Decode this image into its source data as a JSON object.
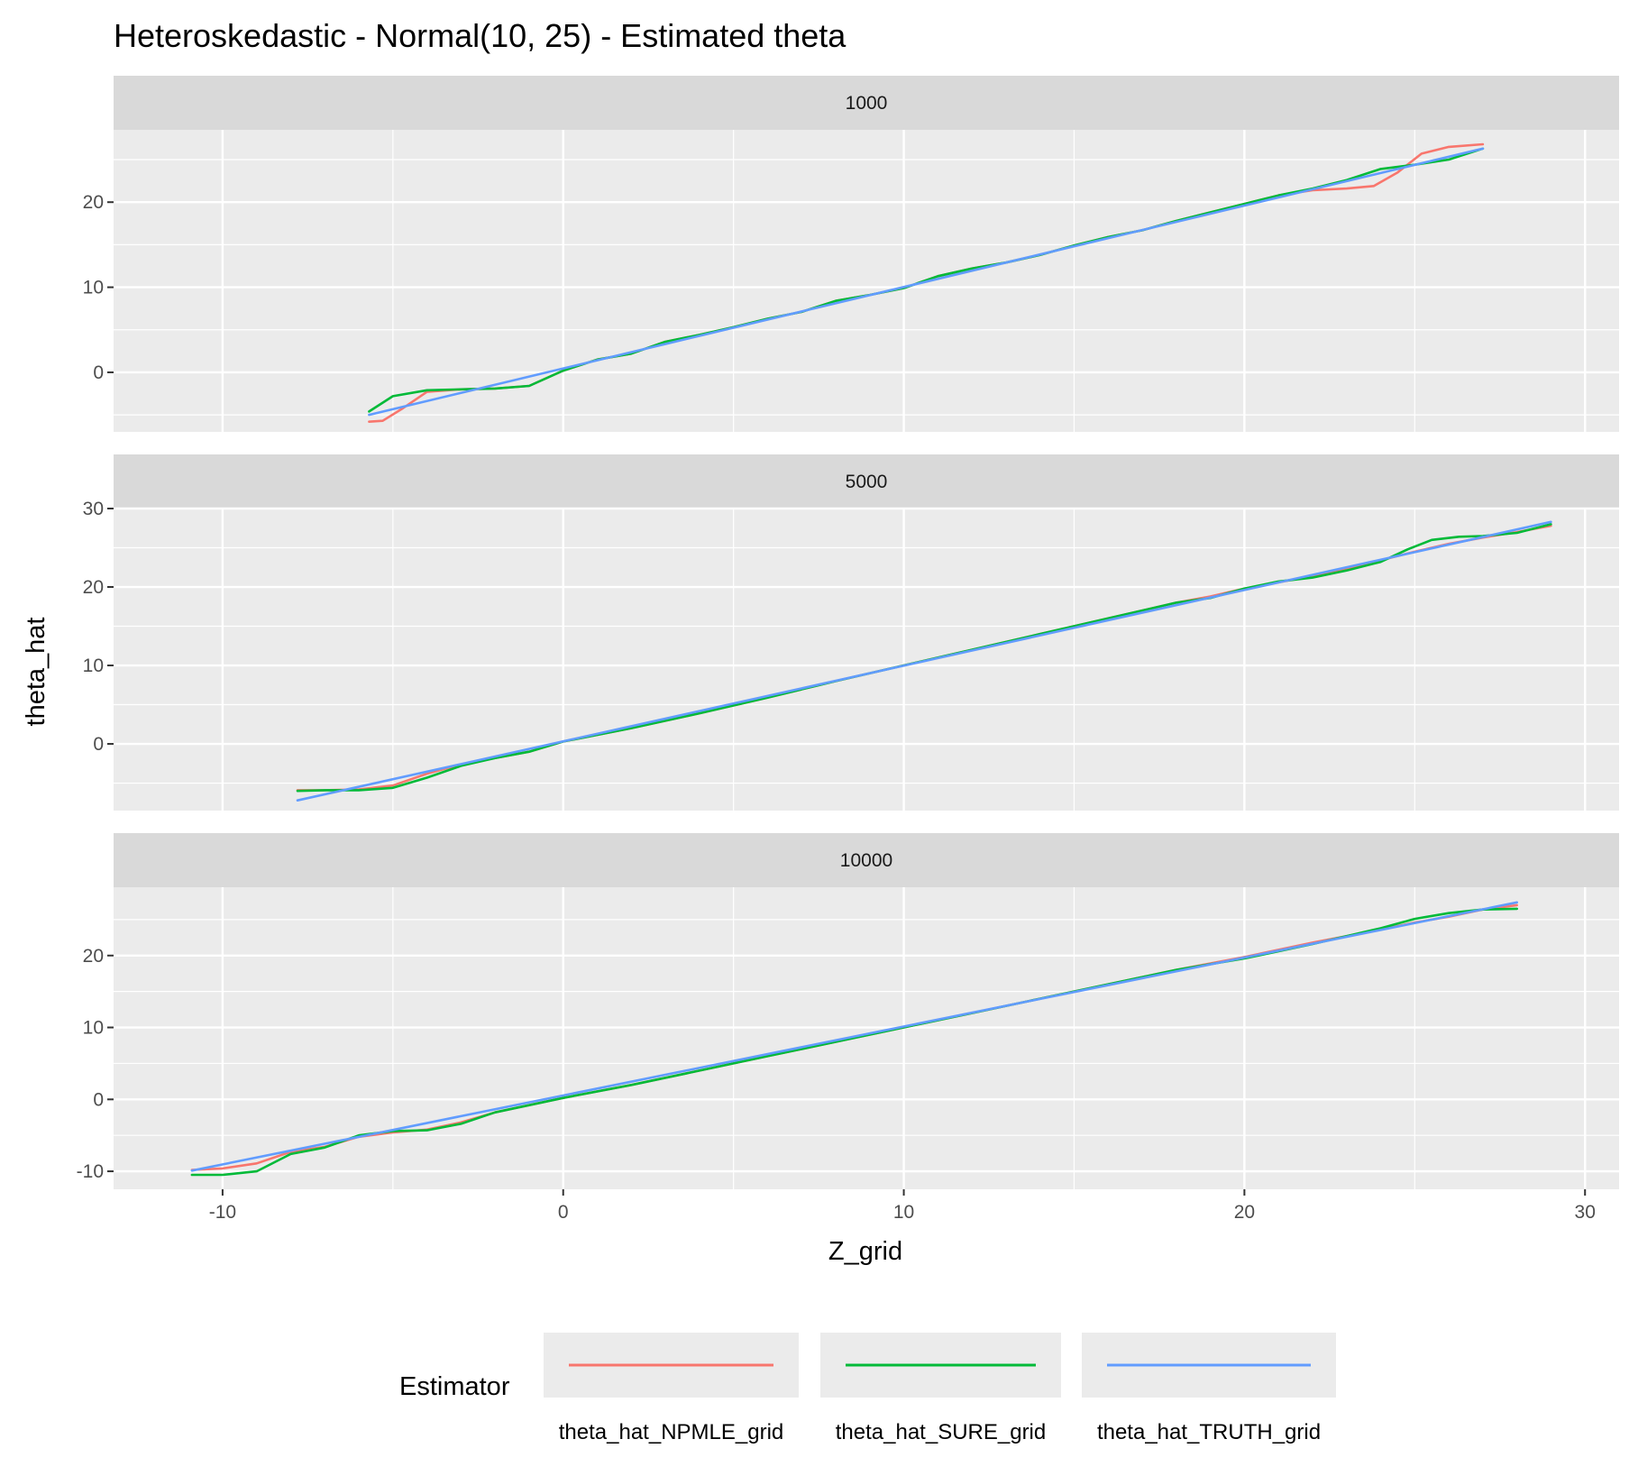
{
  "chart_data": {
    "type": "line",
    "title": "Heteroskedastic - Normal(10, 25) - Estimated theta",
    "xlabel": "Z_grid",
    "ylabel": "theta_hat",
    "xlim": [
      -13.2,
      31.0
    ],
    "x_ticks": [
      -10,
      0,
      10,
      20,
      30
    ],
    "x_tick_labels": [
      "-10",
      "0",
      "10",
      "20",
      "30"
    ],
    "grid": true,
    "legend": {
      "title": "Estimator",
      "position": "bottom",
      "entries": [
        "theta_hat_NPMLE_grid",
        "theta_hat_SURE_grid",
        "theta_hat_TRUTH_grid"
      ]
    },
    "colors": {
      "theta_hat_NPMLE_grid": "#F8766D",
      "theta_hat_SURE_grid": "#00BA38",
      "theta_hat_TRUTH_grid": "#619CFF"
    },
    "facets": [
      {
        "label": "1000",
        "ylim": [
          -7,
          28.5
        ],
        "y_ticks": [
          0,
          10,
          20
        ],
        "y_tick_labels": [
          "0",
          "10",
          "20"
        ],
        "series": [
          {
            "name": "theta_hat_NPMLE_grid",
            "x": [
              -5.7,
              -5.3,
              -4.7,
              -4.0,
              -3.0,
              -2.0,
              -1.0,
              0.0,
              1.0,
              2.0,
              3.0,
              4.0,
              5.0,
              6.0,
              7.0,
              8.0,
              9.0,
              10.0,
              11.0,
              12.0,
              13.0,
              14.0,
              15.0,
              16.0,
              17.0,
              18.0,
              19.0,
              20.0,
              21.0,
              22.0,
              23.0,
              23.8,
              24.5,
              25.2,
              26.0,
              27.0
            ],
            "y": [
              -5.8,
              -5.7,
              -4.2,
              -2.3,
              -2.0,
              -1.9,
              -1.6,
              0.2,
              1.5,
              2.2,
              3.6,
              4.4,
              5.3,
              6.3,
              7.1,
              8.4,
              9.1,
              9.9,
              11.3,
              12.2,
              12.9,
              13.8,
              14.9,
              15.9,
              16.7,
              17.8,
              18.8,
              19.8,
              20.8,
              21.4,
              21.6,
              21.9,
              23.5,
              25.7,
              26.5,
              26.8
            ]
          },
          {
            "name": "theta_hat_SURE_grid",
            "x": [
              -5.7,
              -5.0,
              -4.0,
              -3.0,
              -2.0,
              -1.0,
              0.0,
              1.0,
              2.0,
              3.0,
              4.0,
              5.0,
              6.0,
              7.0,
              8.0,
              9.0,
              10.0,
              11.0,
              12.0,
              13.0,
              14.0,
              15.0,
              16.0,
              17.0,
              18.0,
              19.0,
              20.0,
              21.0,
              22.0,
              23.0,
              24.0,
              25.0,
              26.0,
              27.0
            ],
            "y": [
              -4.6,
              -2.8,
              -2.1,
              -2.0,
              -1.9,
              -1.6,
              0.2,
              1.5,
              2.2,
              3.6,
              4.4,
              5.3,
              6.3,
              7.1,
              8.4,
              9.1,
              9.9,
              11.3,
              12.2,
              12.9,
              13.8,
              14.9,
              15.9,
              16.7,
              17.8,
              18.8,
              19.8,
              20.8,
              21.6,
              22.6,
              23.9,
              24.4,
              25.0,
              26.3
            ]
          },
          {
            "name": "theta_hat_TRUTH_grid",
            "x": [
              -5.7,
              27.0
            ],
            "y": [
              -5.0,
              26.3
            ]
          }
        ]
      },
      {
        "label": "5000",
        "ylim": [
          -8.5,
          30.0
        ],
        "y_ticks": [
          0,
          10,
          20,
          30
        ],
        "y_tick_labels": [
          "0",
          "10",
          "20",
          "30"
        ],
        "series": [
          {
            "name": "theta_hat_NPMLE_grid",
            "x": [
              -7.8,
              -7.0,
              -6.0,
              -5.0,
              -4.0,
              -3.0,
              -2.0,
              -1.0,
              0.0,
              2.0,
              4.0,
              6.0,
              8.0,
              10.0,
              12.0,
              14.0,
              16.0,
              18.0,
              19.0,
              20.0,
              21.0,
              22.0,
              23.0,
              24.0,
              25.0,
              26.0,
              27.0,
              28.0,
              29.0
            ],
            "y": [
              -5.9,
              -5.9,
              -5.8,
              -5.3,
              -3.8,
              -2.6,
              -1.8,
              -1.0,
              0.3,
              2.0,
              3.9,
              5.9,
              8.0,
              10.0,
              12.0,
              14.0,
              16.0,
              18.0,
              18.8,
              19.8,
              20.6,
              21.4,
              22.3,
              23.4,
              24.5,
              25.5,
              26.3,
              27.0,
              27.8
            ]
          },
          {
            "name": "theta_hat_SURE_grid",
            "x": [
              -7.8,
              -7.0,
              -6.0,
              -5.0,
              -4.0,
              -3.0,
              -2.0,
              -1.0,
              0.0,
              2.0,
              4.0,
              6.0,
              8.0,
              10.0,
              12.0,
              14.0,
              16.0,
              18.0,
              19.0,
              20.0,
              21.0,
              22.0,
              23.0,
              24.0,
              24.8,
              25.5,
              26.3,
              27.0,
              28.0,
              29.0
            ],
            "y": [
              -6.0,
              -5.9,
              -5.9,
              -5.6,
              -4.3,
              -2.8,
              -1.8,
              -1.0,
              0.3,
              2.0,
              3.9,
              5.9,
              8.0,
              10.0,
              12.0,
              14.0,
              16.0,
              18.0,
              18.6,
              19.8,
              20.7,
              21.2,
              22.1,
              23.2,
              24.8,
              26.0,
              26.4,
              26.5,
              26.9,
              28.0
            ]
          },
          {
            "name": "theta_hat_TRUTH_grid",
            "x": [
              -7.8,
              29.0
            ],
            "y": [
              -7.2,
              28.3
            ]
          }
        ]
      },
      {
        "label": "10000",
        "ylim": [
          -12.5,
          29.5
        ],
        "y_ticks": [
          -10,
          0,
          10,
          20
        ],
        "y_tick_labels": [
          "-10",
          "0",
          "10",
          "20"
        ],
        "series": [
          {
            "name": "theta_hat_NPMLE_grid",
            "x": [
              -10.9,
              -10.0,
              -9.0,
              -8.0,
              -7.0,
              -6.0,
              -5.0,
              -4.0,
              -3.0,
              -2.0,
              -1.0,
              0.0,
              2.0,
              4.0,
              6.0,
              8.0,
              10.0,
              12.0,
              14.0,
              16.0,
              18.0,
              20.0,
              22.0,
              24.0,
              25.0,
              26.0,
              27.0,
              28.0
            ],
            "y": [
              -9.8,
              -9.6,
              -8.9,
              -7.3,
              -6.6,
              -5.2,
              -4.6,
              -4.2,
              -3.2,
              -1.8,
              -0.8,
              0.2,
              2.0,
              4.0,
              6.0,
              8.0,
              10.0,
              12.0,
              14.0,
              16.0,
              18.0,
              19.8,
              21.8,
              23.6,
              24.6,
              25.4,
              26.4,
              27.0
            ]
          },
          {
            "name": "theta_hat_SURE_grid",
            "x": [
              -10.9,
              -10.0,
              -9.0,
              -8.0,
              -7.0,
              -6.0,
              -5.0,
              -4.0,
              -3.0,
              -2.0,
              -1.0,
              0.0,
              2.0,
              4.0,
              6.0,
              8.0,
              10.0,
              12.0,
              14.0,
              16.0,
              18.0,
              20.0,
              22.0,
              24.0,
              25.0,
              26.0,
              27.0,
              28.0
            ],
            "y": [
              -10.5,
              -10.5,
              -10.0,
              -7.6,
              -6.7,
              -5.0,
              -4.4,
              -4.3,
              -3.4,
              -1.8,
              -0.8,
              0.2,
              2.0,
              4.0,
              6.0,
              8.0,
              10.0,
              12.0,
              14.0,
              16.0,
              18.0,
              19.6,
              21.6,
              23.8,
              25.1,
              25.9,
              26.4,
              26.5
            ]
          },
          {
            "name": "theta_hat_TRUTH_grid",
            "x": [
              -10.9,
              28.0
            ],
            "y": [
              -9.9,
              27.4
            ]
          }
        ]
      }
    ]
  }
}
